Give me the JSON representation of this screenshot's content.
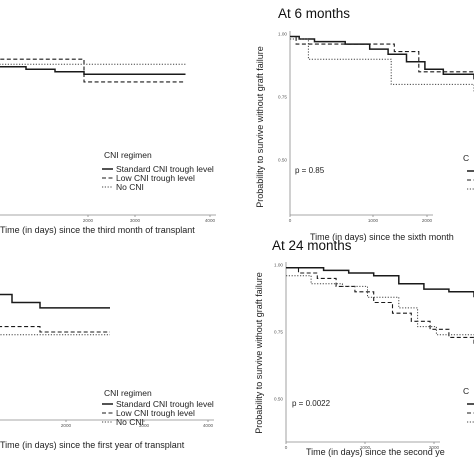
{
  "chart_data": [
    {
      "type": "line",
      "step": true,
      "title": "",
      "xlabel": "Time (in days) since the third month of transplant",
      "ylabel": "",
      "x_ticks": [
        "2000",
        "3000",
        "4000"
      ],
      "xlim": [
        0,
        4000
      ],
      "ylim": [
        0,
        1
      ],
      "legend_title": "CNI regimen",
      "legend": [
        "Standard CNI trough level",
        "Low CNI trough level",
        "No CNI"
      ],
      "pvalue": "",
      "series": [
        {
          "name": "Standard CNI trough level",
          "x": [
            0,
            400,
            700,
            1200,
            1500,
            1650,
            1800,
            2000,
            2200,
            2500,
            2800,
            3000,
            3200,
            3900
          ],
          "y": [
            0.97,
            0.96,
            0.95,
            0.95,
            0.93,
            0.91,
            0.9,
            0.89,
            0.88,
            0.87,
            0.86,
            0.85,
            0.84,
            0.84
          ]
        },
        {
          "name": "Low CNI trough level",
          "x": [
            0,
            1000,
            1100,
            1500,
            1600,
            3100,
            3200,
            3900
          ],
          "y": [
            0.99,
            0.99,
            0.96,
            0.96,
            0.9,
            0.9,
            0.81,
            0.81
          ]
        },
        {
          "name": "No CNI",
          "x": [
            0,
            500,
            3900
          ],
          "y": [
            0.93,
            0.88,
            0.88
          ]
        }
      ]
    },
    {
      "type": "line",
      "step": true,
      "title": "At 6 months",
      "xlabel": "Time (in days) since the sixth month",
      "ylabel": "Probability to survive without graft failure",
      "x_ticks": [
        "0",
        "1000",
        "2000"
      ],
      "y_ticks": [
        "0.25",
        "0.50",
        "0.75",
        "1.00"
      ],
      "xlim": [
        0,
        3000
      ],
      "ylim": [
        0,
        1
      ],
      "legend_title": "C",
      "legend": [],
      "pvalue": "p = 0.85",
      "series": [
        {
          "name": "Standard CNI trough level",
          "x": [
            0,
            150,
            400,
            900,
            1300,
            1600,
            1900,
            2200,
            2500,
            3000
          ],
          "y": [
            0.99,
            0.98,
            0.97,
            0.96,
            0.94,
            0.92,
            0.89,
            0.86,
            0.84,
            0.82
          ]
        },
        {
          "name": "Low CNI trough level",
          "x": [
            0,
            100,
            1600,
            1700,
            2000,
            2100,
            3000
          ],
          "y": [
            0.99,
            0.96,
            0.96,
            0.93,
            0.93,
            0.85,
            0.85
          ]
        },
        {
          "name": "No CNI",
          "x": [
            0,
            300,
            1500,
            1650,
            2150,
            3000
          ],
          "y": [
            0.98,
            0.9,
            0.9,
            0.8,
            0.8,
            0.77
          ]
        }
      ]
    },
    {
      "type": "line",
      "step": true,
      "title": "",
      "xlabel": "Time (in days) since the first year of transplant",
      "ylabel": "",
      "x_ticks": [
        "2000",
        "3000",
        "4000"
      ],
      "xlim": [
        0,
        4000
      ],
      "ylim": [
        0,
        1
      ],
      "legend_title": "CNI regimen",
      "legend": [
        "Standard CNI trough level",
        "Low CNI trough level",
        "No CNI"
      ],
      "pvalue": "",
      "series": [
        {
          "name": "Standard CNI trough level",
          "x": [
            0,
            300,
            600,
            1000,
            1400,
            1800,
            2200,
            2600,
            2800,
            3000,
            3500
          ],
          "y": [
            0.98,
            0.97,
            0.95,
            0.94,
            0.93,
            0.91,
            0.9,
            0.89,
            0.86,
            0.84,
            0.84
          ]
        },
        {
          "name": "Low CNI trough level",
          "x": [
            0,
            600,
            800,
            1000,
            1200,
            3000,
            3500
          ],
          "y": [
            0.96,
            0.9,
            0.84,
            0.79,
            0.77,
            0.75,
            0.75
          ]
        },
        {
          "name": "No CNI",
          "x": [
            0,
            400,
            1200,
            1600,
            3500
          ],
          "y": [
            0.94,
            0.9,
            0.83,
            0.74,
            0.74
          ]
        }
      ]
    },
    {
      "type": "line",
      "step": true,
      "title": "At 24 months",
      "xlabel": "Time (in days) since the second ye",
      "ylabel": "Probability to survive without graft failure",
      "x_ticks": [
        "0",
        "1000",
        "2000"
      ],
      "y_ticks": [
        "0.25",
        "0.50",
        "0.75",
        "1.00"
      ],
      "xlim": [
        0,
        3000
      ],
      "ylim": [
        0,
        1
      ],
      "legend_title": "C",
      "legend": [],
      "pvalue": "p = 0.0022",
      "series": [
        {
          "name": "Standard CNI trough level",
          "x": [
            0,
            600,
            1000,
            1400,
            1800,
            2200,
            2600,
            3000
          ],
          "y": [
            0.99,
            0.98,
            0.97,
            0.96,
            0.93,
            0.91,
            0.9,
            0.88
          ]
        },
        {
          "name": "Low CNI trough level",
          "x": [
            0,
            200,
            500,
            800,
            1100,
            1400,
            1700,
            2000,
            2300,
            2600,
            3000
          ],
          "y": [
            0.99,
            0.97,
            0.95,
            0.92,
            0.9,
            0.86,
            0.82,
            0.79,
            0.76,
            0.73,
            0.7
          ]
        },
        {
          "name": "No CNI",
          "x": [
            0,
            400,
            900,
            1300,
            1800,
            2100,
            2400,
            3000
          ],
          "y": [
            0.96,
            0.93,
            0.92,
            0.88,
            0.84,
            0.77,
            0.74,
            0.72
          ]
        }
      ]
    }
  ]
}
